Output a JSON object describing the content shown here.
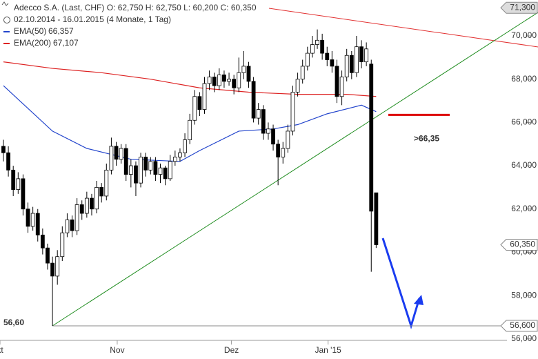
{
  "chart_data": {
    "type": "candlestick",
    "title": "Adecco S.A. (Last, CHF)  O: 62,750  H: 62,750  L: 60,200  C: 60,350",
    "subtitle": "02.10.2014 - 16.01.2015 (4 Monate, 1 Tag)",
    "candles": {
      "open": [
        64.9,
        64.6,
        63.8,
        62.9,
        63.4,
        62.0,
        61.2,
        61.8,
        60.8,
        60.2,
        59.5,
        58.9,
        59.8,
        60.9,
        61.5,
        61.0,
        62.2,
        61.8,
        62.5,
        62.0,
        63.0,
        62.6,
        63.8,
        64.9,
        64.3,
        64.8,
        63.6,
        64.0,
        63.2,
        64.4,
        63.8,
        64.2,
        63.6,
        63.9,
        63.4,
        64.2,
        64.4,
        64.6,
        65.2,
        66.1,
        67.2,
        66.6,
        67.8,
        68.1,
        67.7,
        68.2,
        67.9,
        68.0,
        67.6,
        68.3,
        68.6,
        67.9,
        66.2,
        66.6,
        65.5,
        65.7,
        65.0,
        64.4,
        64.8,
        65.6,
        67.4,
        68.0,
        68.6,
        69.2,
        69.6,
        69.8,
        69.2,
        68.9,
        68.6,
        67.2,
        68.1,
        69.1,
        68.3,
        69.5,
        68.8,
        68.7,
        62.75
      ],
      "high": [
        65.2,
        64.9,
        64.0,
        63.7,
        63.6,
        62.3,
        62.1,
        62.0,
        61.1,
        60.4,
        59.8,
        60.1,
        61.2,
        61.8,
        61.7,
        62.5,
        62.4,
        62.8,
        62.7,
        63.3,
        63.2,
        64.1,
        65.3,
        65.1,
        65.0,
        65.0,
        64.3,
        64.2,
        64.6,
        64.6,
        64.4,
        64.4,
        64.1,
        64.0,
        64.5,
        64.7,
        64.8,
        65.5,
        66.4,
        67.5,
        67.4,
        68.1,
        68.4,
        68.3,
        68.5,
        68.4,
        68.3,
        68.2,
        69.0,
        69.3,
        68.8,
        68.1,
        66.9,
        66.8,
        66.0,
        65.9,
        65.2,
        65.1,
        65.9,
        67.7,
        68.3,
        68.9,
        69.5,
        70.0,
        70.3,
        70.1,
        69.5,
        69.3,
        68.9,
        68.4,
        69.4,
        69.3,
        70.0,
        69.8,
        69.7,
        68.9,
        62.75
      ],
      "low": [
        64.2,
        63.5,
        62.6,
        62.7,
        61.7,
        60.9,
        61.0,
        60.5,
        59.9,
        59.2,
        56.6,
        58.5,
        59.6,
        60.7,
        60.7,
        60.8,
        61.5,
        61.6,
        61.7,
        61.8,
        62.3,
        62.4,
        63.6,
        64.0,
        64.1,
        63.3,
        63.0,
        62.6,
        63.0,
        63.5,
        63.6,
        63.3,
        63.2,
        63.1,
        63.3,
        64.0,
        64.2,
        64.4,
        65.0,
        65.9,
        66.3,
        66.4,
        67.5,
        67.4,
        67.5,
        67.6,
        67.7,
        67.3,
        67.4,
        68.0,
        67.6,
        66.0,
        65.9,
        65.2,
        65.2,
        64.7,
        63.1,
        64.1,
        64.6,
        65.4,
        67.2,
        67.8,
        68.4,
        69.0,
        69.4,
        68.9,
        68.6,
        68.3,
        66.9,
        66.8,
        67.9,
        68.0,
        68.1,
        68.5,
        68.6,
        59.1,
        60.2
      ],
      "close": [
        64.6,
        63.8,
        62.9,
        63.4,
        62.0,
        61.2,
        61.8,
        60.8,
        60.2,
        59.5,
        58.9,
        59.8,
        60.9,
        61.5,
        61.0,
        62.2,
        61.8,
        62.5,
        62.0,
        63.0,
        62.6,
        63.8,
        64.9,
        64.3,
        64.8,
        63.6,
        64.0,
        63.2,
        64.4,
        63.8,
        64.2,
        63.6,
        63.9,
        63.4,
        64.2,
        64.4,
        64.6,
        65.2,
        66.1,
        67.2,
        66.6,
        67.8,
        68.1,
        67.7,
        68.2,
        67.9,
        68.0,
        67.6,
        68.3,
        68.6,
        67.9,
        66.2,
        66.6,
        65.5,
        65.7,
        65.0,
        64.4,
        64.8,
        65.6,
        67.4,
        68.0,
        68.6,
        69.2,
        69.6,
        69.8,
        69.2,
        68.9,
        68.6,
        67.2,
        68.1,
        69.1,
        68.3,
        69.5,
        68.8,
        69.4,
        61.9,
        60.35
      ]
    },
    "series": [
      {
        "name": "EMA(50)",
        "value_label": "66,357",
        "color": "#2244cc",
        "x": [
          0,
          10,
          17,
          26,
          36,
          40,
          48,
          55,
          60,
          66,
          73,
          76
        ],
        "values": [
          67.7,
          65.6,
          64.8,
          64.3,
          64.2,
          64.7,
          65.6,
          65.7,
          65.9,
          66.4,
          66.8,
          66.5
        ]
      },
      {
        "name": "EMA(200)",
        "value_label": "67,107",
        "color": "#dd2222",
        "x": [
          0,
          10,
          20,
          30,
          40,
          50,
          60,
          70,
          76
        ],
        "values": [
          68.8,
          68.5,
          68.3,
          68.0,
          67.6,
          67.4,
          67.3,
          67.3,
          67.2
        ]
      }
    ],
    "xlim": [
      -0.7,
      109
    ],
    "xticks": [
      {
        "value": -0.7,
        "label": "kt"
      },
      {
        "value": 23.2,
        "label": "Nov"
      },
      {
        "value": 46.5,
        "label": "Dez"
      },
      {
        "value": 66.2,
        "label": "Jan '15"
      }
    ],
    "ylim": [
      55.93,
      71.66
    ],
    "yticks": [
      {
        "value": 56,
        "label": "56,000"
      },
      {
        "value": 58,
        "label": "58,000"
      },
      {
        "value": 60,
        "label": "60,000"
      },
      {
        "value": 62,
        "label": "62,000"
      },
      {
        "value": 64,
        "label": "64,000"
      },
      {
        "value": 66,
        "label": "66,000"
      },
      {
        "value": 68,
        "label": "68,000"
      },
      {
        "value": 70,
        "label": "70,000"
      }
    ],
    "price_tags": [
      {
        "value": 71.3,
        "label": "71,300"
      },
      {
        "value": 60.35,
        "label": "60,350"
      },
      {
        "value": 56.6,
        "label": "56,600"
      }
    ],
    "support_line": {
      "value": 56.6,
      "label": "56,60"
    },
    "target_level": {
      "value": 66.35,
      "label": ">66,35",
      "color": "#dd0000"
    },
    "bull_color": "#ffffff",
    "bear_color": "#000000"
  }
}
